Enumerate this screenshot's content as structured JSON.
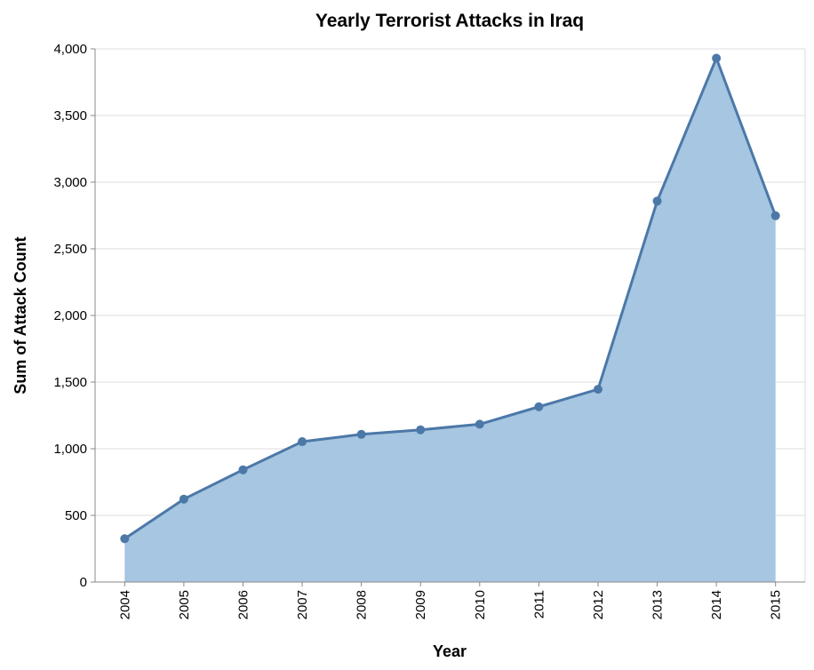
{
  "chart_data": {
    "type": "area",
    "title": "Yearly Terrorist Attacks in Iraq",
    "xlabel": "Year",
    "ylabel": "Sum of Attack Count",
    "categories": [
      "2004",
      "2005",
      "2006",
      "2007",
      "2008",
      "2009",
      "2010",
      "2011",
      "2012",
      "2013",
      "2014",
      "2015"
    ],
    "values": [
      325,
      622,
      842,
      1053,
      1108,
      1142,
      1184,
      1315,
      1446,
      2858,
      3930,
      2748
    ],
    "ylim": [
      0,
      4000
    ],
    "yticks": [
      0,
      500,
      1000,
      1500,
      2000,
      2500,
      3000,
      3500,
      4000
    ],
    "ytick_labels": [
      "0",
      "500",
      "1,000",
      "1,500",
      "2,000",
      "2,500",
      "3,000",
      "3,500",
      "4,000"
    ],
    "grid": true,
    "colors": {
      "line": "#4c78a8",
      "area": "#a6c6e1"
    }
  }
}
